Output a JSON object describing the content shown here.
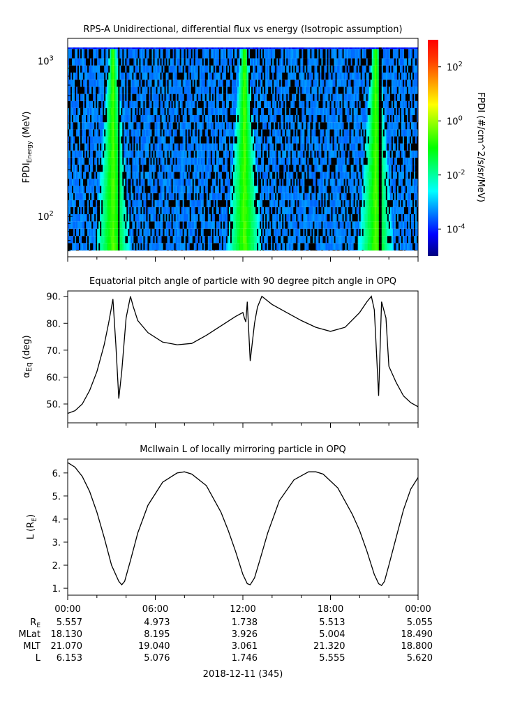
{
  "colors": {
    "line": "#000000",
    "background": "#ffffff"
  },
  "chart_data": [
    {
      "type": "heatmap",
      "title": "RPS-A Unidirectional, differential flux vs energy (Isotropic assumption)",
      "ylabel_main": "FPDI",
      "ylabel_sub": "Energy",
      "ylabel_unit": "(MeV)",
      "yscale": "log",
      "ylim": [
        55,
        1400
      ],
      "y_ticks": [
        {
          "value": 100,
          "base": "10",
          "exp": "2"
        },
        {
          "value": 1000,
          "base": "10",
          "exp": "3"
        }
      ],
      "energy_channels_mev": [
        58,
        64,
        71,
        79,
        88,
        98,
        109,
        121,
        134,
        149,
        166,
        184,
        204,
        227,
        252,
        280,
        311,
        345,
        383,
        426,
        473,
        525,
        583,
        648,
        720,
        800,
        889,
        987,
        1100,
        1300
      ],
      "x_hours": [
        0,
        24
      ],
      "bright_band_times_h": [
        3.1,
        12.1,
        21.1
      ],
      "data_gaps_h": [
        3.5,
        21.45
      ],
      "colorbar": {
        "label": "FPDI (#/cm^2/s/sr/MeV)",
        "scale": "log",
        "range": [
          1e-05,
          1000
        ],
        "ticks": [
          {
            "base": "10",
            "exp": "-4",
            "value": -4
          },
          {
            "base": "10",
            "exp": "-2",
            "value": -2
          },
          {
            "base": "10",
            "exp": "0",
            "value": 0
          },
          {
            "base": "10",
            "exp": "2",
            "value": 2
          }
        ],
        "colors": [
          "#00007f",
          "#0000ff",
          "#0080ff",
          "#00ffff",
          "#00ff80",
          "#00ff00",
          "#80ff00",
          "#ffff00",
          "#ffa000",
          "#ff4000",
          "#ff0000"
        ]
      }
    },
    {
      "type": "line",
      "title": "Equatorial pitch angle of particle with 90 degree pitch angle in OPQ",
      "ylabel": "α",
      "ylabel_sub": "Eq",
      "ylabel_unit": "(deg)",
      "ylim": [
        43,
        92
      ],
      "y_ticks": [
        50,
        60,
        70,
        80,
        90
      ],
      "x_hours": [
        0,
        0.5,
        1,
        1.5,
        2,
        2.5,
        2.8,
        3.0,
        3.1,
        3.3,
        3.5,
        3.7,
        4.0,
        4.3,
        4.5,
        4.8,
        5.5,
        6.5,
        7.5,
        8.5,
        9.5,
        10.5,
        11.5,
        12.0,
        12.1,
        12.2,
        12.3,
        12.5,
        12.8,
        13.0,
        13.3,
        14.0,
        15.0,
        16.0,
        17.0,
        18.0,
        19.0,
        20.0,
        20.5,
        20.8,
        21.0,
        21.1,
        21.3,
        21.5,
        21.8,
        22.0,
        22.5,
        23.0,
        23.5,
        24.0
      ],
      "y": [
        46.5,
        47.5,
        50.0,
        55.0,
        62.0,
        72.0,
        80.0,
        86.0,
        89.0,
        72.0,
        52.0,
        62.0,
        82.0,
        90.0,
        86.0,
        81.0,
        76.5,
        73.0,
        72.0,
        72.5,
        75.5,
        79.0,
        82.5,
        84.0,
        82.0,
        80.5,
        88.0,
        66.0,
        80.0,
        86.0,
        90.0,
        87.0,
        84.0,
        81.0,
        78.5,
        77.0,
        78.5,
        84.0,
        88.0,
        90.0,
        85.0,
        75.0,
        53.0,
        88.0,
        82.0,
        64.0,
        58.0,
        53.0,
        50.5,
        49.0
      ]
    },
    {
      "type": "line",
      "title": "McIlwain L of locally mirroring particle in OPQ",
      "ylabel": "L",
      "ylabel_unit_main": "R",
      "ylabel_unit_sub": "E",
      "ylim": [
        0.7,
        6.6
      ],
      "y_ticks": [
        1,
        2,
        3,
        4,
        5,
        6
      ],
      "x_hours": [
        0,
        0.5,
        1,
        1.5,
        2,
        2.5,
        3.0,
        3.5,
        3.7,
        3.9,
        4.3,
        4.8,
        5.5,
        6.5,
        7.5,
        8.0,
        8.5,
        9.5,
        10.5,
        11.0,
        11.5,
        12.0,
        12.3,
        12.5,
        12.8,
        13.2,
        13.7,
        14.5,
        15.5,
        16.5,
        17.0,
        17.5,
        18.5,
        19.5,
        20.0,
        20.5,
        21.0,
        21.3,
        21.5,
        21.7,
        22.0,
        22.5,
        23.0,
        23.5,
        24.0
      ],
      "y": [
        6.45,
        6.25,
        5.85,
        5.2,
        4.3,
        3.2,
        2.0,
        1.3,
        1.15,
        1.3,
        2.2,
        3.4,
        4.6,
        5.6,
        6.0,
        6.05,
        5.95,
        5.45,
        4.3,
        3.5,
        2.6,
        1.6,
        1.2,
        1.15,
        1.45,
        2.3,
        3.4,
        4.8,
        5.7,
        6.05,
        6.05,
        5.95,
        5.35,
        4.2,
        3.5,
        2.6,
        1.6,
        1.2,
        1.12,
        1.3,
        2.0,
        3.2,
        4.4,
        5.3,
        5.8
      ]
    }
  ],
  "x_axis": {
    "tick_labels": [
      "00:00",
      "06:00",
      "12:00",
      "18:00",
      "00:00"
    ],
    "date_label": "2018-12-11 (345)",
    "ephemeris": [
      {
        "label_main": "R",
        "label_sub": "E",
        "values": [
          "5.557",
          "4.973",
          "1.738",
          "5.513",
          "5.055"
        ]
      },
      {
        "label_main": "MLat",
        "label_sub": "",
        "values": [
          "18.130",
          "8.195",
          "3.926",
          "5.004",
          "18.490"
        ]
      },
      {
        "label_main": "MLT",
        "label_sub": "",
        "values": [
          "21.070",
          "19.040",
          "3.061",
          "21.320",
          "18.800"
        ]
      },
      {
        "label_main": "L",
        "label_sub": "",
        "values": [
          "6.153",
          "5.076",
          "1.746",
          "5.555",
          "5.620"
        ]
      }
    ]
  }
}
